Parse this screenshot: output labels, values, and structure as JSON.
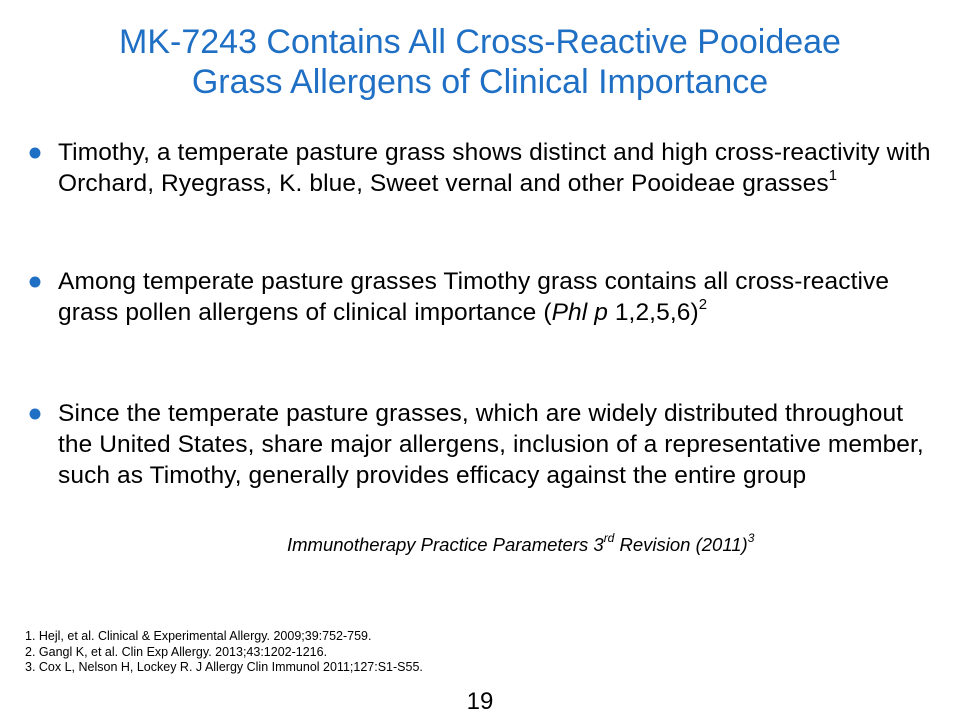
{
  "title": {
    "line1": "MK-7243 Contains All Cross-Reactive Pooideae",
    "line2": "Grass Allergens of Clinical Importance"
  },
  "bullets": [
    {
      "text": "Timothy, a temperate pasture grass shows distinct and high cross-reactivity with Orchard, Ryegrass, K. blue, Sweet vernal and other Pooideae grasses",
      "sup": "1"
    },
    {
      "text_before": "Among temperate pasture grasses Timothy grass contains all cross-reactive grass pollen allergens of clinical importance (",
      "italic": "Phl p",
      "text_after": " 1,2,5,6)",
      "sup": "2"
    },
    {
      "text": "Since the temperate pasture grasses, which are widely distributed throughout the United States, share major allergens, inclusion of a representative member, such as Timothy, generally provides efficacy against the entire group"
    }
  ],
  "citation": {
    "prefix": "Immunotherapy Practice Parameters 3",
    "ordinal": "rd",
    "suffix": " Revision (2011)",
    "sup": "3"
  },
  "references": [
    "1. Hejl, et al. Clinical & Experimental Allergy. 2009;39:752-759.",
    "2. Gangl K, et al. Clin Exp Allergy. 2013;43:1202-1216.",
    "3. Cox L, Nelson H, Lockey R. J Allergy Clin Immunol  2011;127:S1-S55."
  ],
  "page_number": "19",
  "colors": {
    "accent": "#1f6fc5",
    "text": "#000000",
    "background": "#ffffff"
  }
}
